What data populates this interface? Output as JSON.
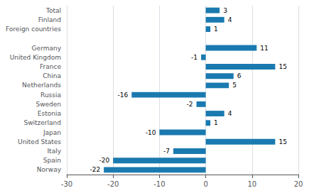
{
  "chart_data": {
    "type": "bar",
    "orientation": "horizontal",
    "categories": [
      "Total",
      "Finland",
      "Foreign countries",
      null,
      "Germany",
      "United Kingdom",
      "France",
      "China",
      "Netherlands",
      "Russia",
      "Sweden",
      "Estonia",
      "Switzerland",
      "Japan",
      "United States",
      "Italy",
      "Spain",
      "Norway"
    ],
    "values": [
      3,
      4,
      1,
      null,
      11,
      -1,
      15,
      6,
      5,
      -16,
      -2,
      4,
      1,
      -10,
      15,
      -7,
      -20,
      -22
    ],
    "color": "#1a7ab0",
    "xlim": [
      -30,
      20
    ],
    "xticks": [
      -30,
      -20,
      -10,
      0,
      10,
      20
    ],
    "grid": true,
    "data_labels": true
  }
}
